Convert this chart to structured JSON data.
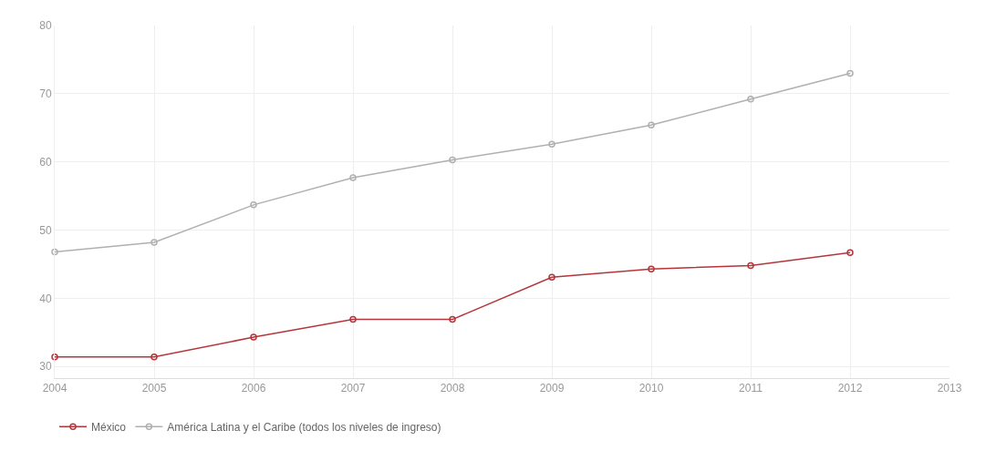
{
  "chart_data": {
    "type": "line",
    "x": [
      2004,
      2005,
      2006,
      2007,
      2008,
      2009,
      2010,
      2011,
      2012
    ],
    "series": [
      {
        "name": "México",
        "color": "#b5353a",
        "values": [
          31.4,
          31.4,
          34.3,
          36.9,
          36.9,
          43.1,
          44.3,
          44.8,
          46.7
        ]
      },
      {
        "name": "América Latina y el Caribe (todos los niveles de ingreso)",
        "color": "#b0b0b0",
        "values": [
          46.8,
          48.2,
          53.7,
          57.7,
          60.3,
          62.6,
          65.4,
          69.2,
          73.0
        ]
      }
    ],
    "xlim": [
      2004,
      2013
    ],
    "xticks": [
      2004,
      2005,
      2006,
      2007,
      2008,
      2009,
      2010,
      2011,
      2012,
      2013
    ],
    "ylim": [
      28.3,
      80
    ],
    "yticks": [
      30,
      40,
      50,
      60,
      70,
      80
    ],
    "grid": true,
    "legend": "bottom left",
    "marker": "circle",
    "line_style": "solid"
  }
}
